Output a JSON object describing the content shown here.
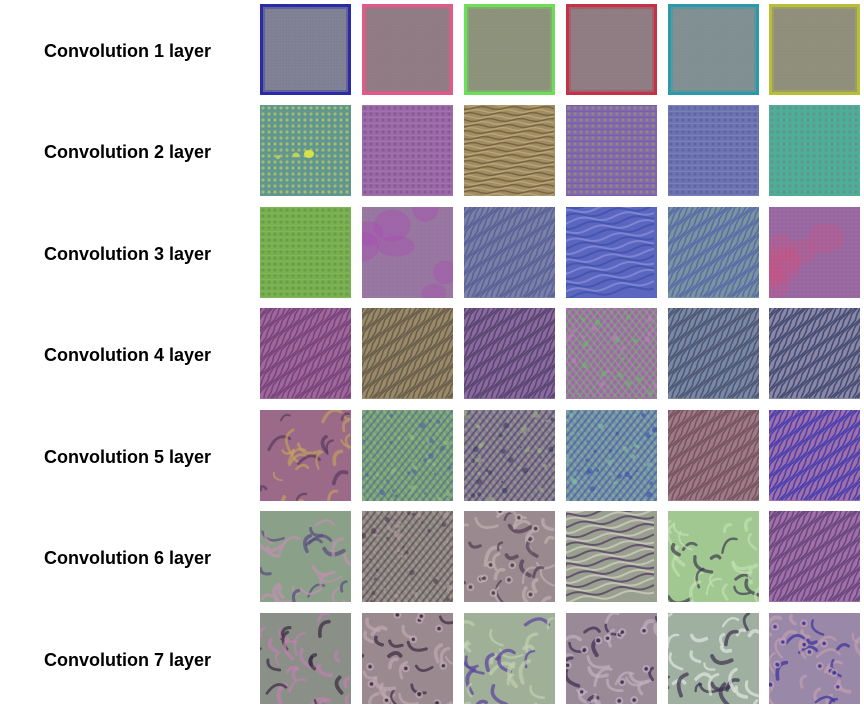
{
  "rows": [
    {
      "label": "Convolution 1 layer",
      "tiles": [
        {
          "base": "#7f7f94",
          "accent": "#2b2ba8",
          "accent2": "#9090a0",
          "pattern": "border"
        },
        {
          "base": "#8f7b84",
          "accent": "#e05a8a",
          "accent2": "#9a8088",
          "pattern": "border"
        },
        {
          "base": "#8c927a",
          "accent": "#6ede58",
          "accent2": "#959a86",
          "pattern": "border"
        },
        {
          "base": "#8e7c82",
          "accent": "#c43248",
          "accent2": "#9a8389",
          "pattern": "border"
        },
        {
          "base": "#7f8f92",
          "accent": "#2b9aa8",
          "accent2": "#8a989a",
          "pattern": "border"
        },
        {
          "base": "#8e8e7a",
          "accent": "#b8be3a",
          "accent2": "#989882",
          "pattern": "border"
        }
      ]
    },
    {
      "label": "Convolution 2 layer",
      "tiles": [
        {
          "base": "#5f9490",
          "accent": "#d8e04a",
          "accent2": "#6aa09c",
          "pattern": "dots"
        },
        {
          "base": "#9a6aa6",
          "accent": "#7a4a8c",
          "accent2": "#b480b8",
          "pattern": "grid"
        },
        {
          "base": "#a08c62",
          "accent": "#6a5a3a",
          "accent2": "#c0aa7a",
          "pattern": "hstripe"
        },
        {
          "base": "#8268b0",
          "accent": "#a0a050",
          "accent2": "#6a50a0",
          "pattern": "grid"
        },
        {
          "base": "#6e74b0",
          "accent": "#5058a0",
          "accent2": "#8a90c0",
          "pattern": "grid"
        },
        {
          "base": "#4ab098",
          "accent": "#7a7a8a",
          "accent2": "#62a090",
          "pattern": "grid"
        }
      ]
    },
    {
      "label": "Convolution 3 layer",
      "tiles": [
        {
          "base": "#78b050",
          "accent": "#5a9040",
          "accent2": "#8ac060",
          "pattern": "grid"
        },
        {
          "base": "#9a74a2",
          "accent": "#b040b8",
          "accent2": "#8a8a90",
          "pattern": "blob"
        },
        {
          "base": "#7a80a8",
          "accent": "#505890",
          "accent2": "#9a90a0",
          "pattern": "diag"
        },
        {
          "base": "#5a66c0",
          "accent": "#8a90d8",
          "accent2": "#4050a8",
          "pattern": "wave"
        },
        {
          "base": "#7a94a0",
          "accent": "#5060a8",
          "accent2": "#90a8a0",
          "pattern": "diag"
        },
        {
          "base": "#9c6aa0",
          "accent": "#d05080",
          "accent2": "#7a60a8",
          "pattern": "blob"
        }
      ]
    },
    {
      "label": "Convolution 4 layer",
      "tiles": [
        {
          "base": "#a0689a",
          "accent": "#6a3a70",
          "accent2": "#c088b8",
          "pattern": "diag"
        },
        {
          "base": "#9a8a6a",
          "accent": "#5a5040",
          "accent2": "#b8a880",
          "pattern": "diag"
        },
        {
          "base": "#8a6aa0",
          "accent": "#4a3a60",
          "accent2": "#b090b8",
          "pattern": "diag"
        },
        {
          "base": "#9a6aa0",
          "accent": "#60c060",
          "accent2": "#c080c0",
          "pattern": "cross"
        },
        {
          "base": "#7a88a8",
          "accent": "#404860",
          "accent2": "#a0a8b8",
          "pattern": "diag"
        },
        {
          "base": "#8a88a8",
          "accent": "#303860",
          "accent2": "#b8b0c0",
          "pattern": "diag"
        }
      ]
    },
    {
      "label": "Convolution 5 layer",
      "tiles": [
        {
          "base": "#9a6a88",
          "accent": "#5a3a60",
          "accent2": "#c0a060",
          "pattern": "swirl"
        },
        {
          "base": "#7aa070",
          "accent": "#4a60a8",
          "accent2": "#98c080",
          "pattern": "cross"
        },
        {
          "base": "#8a7a98",
          "accent": "#3a3a60",
          "accent2": "#a0b080",
          "pattern": "cross"
        },
        {
          "base": "#7a90a0",
          "accent": "#3a50b0",
          "accent2": "#80c0a0",
          "pattern": "cross"
        },
        {
          "base": "#a07a88",
          "accent": "#6a4a50",
          "accent2": "#c0a090",
          "pattern": "diag"
        },
        {
          "base": "#a070a8",
          "accent": "#3030b0",
          "accent2": "#c090c0",
          "pattern": "diag"
        }
      ]
    },
    {
      "label": "Convolution 6 layer",
      "tiles": [
        {
          "base": "#8aa088",
          "accent": "#5a4a80",
          "accent2": "#c090b0",
          "pattern": "swirl"
        },
        {
          "base": "#8a8a80",
          "accent": "#503a50",
          "accent2": "#b8a0a0",
          "pattern": "cross"
        },
        {
          "base": "#9a8a90",
          "accent": "#503a50",
          "accent2": "#c0b0b0",
          "pattern": "eyes"
        },
        {
          "base": "#9aa090",
          "accent": "#503a60",
          "accent2": "#d0d0c0",
          "pattern": "wave"
        },
        {
          "base": "#a0c890",
          "accent": "#403a50",
          "accent2": "#c0e0b0",
          "pattern": "swirl"
        },
        {
          "base": "#a070a8",
          "accent": "#5a3a70",
          "accent2": "#c090c0",
          "pattern": "diag"
        }
      ]
    },
    {
      "label": "Convolution 7 layer",
      "tiles": [
        {
          "base": "#8a9088",
          "accent": "#3a2a40",
          "accent2": "#c080b0",
          "pattern": "swirl"
        },
        {
          "base": "#9a8a90",
          "accent": "#3a2a40",
          "accent2": "#c0a8b0",
          "pattern": "eyes"
        },
        {
          "base": "#a0b098",
          "accent": "#5a40a0",
          "accent2": "#c0d0b0",
          "pattern": "swirl"
        },
        {
          "base": "#9a8a98",
          "accent": "#3a2a50",
          "accent2": "#c0b0c0",
          "pattern": "eyes"
        },
        {
          "base": "#a0b0a0",
          "accent": "#3a3050",
          "accent2": "#e0e8e0",
          "pattern": "swirl"
        },
        {
          "base": "#9a88a8",
          "accent": "#3a30a0",
          "accent2": "#c0a0b0",
          "pattern": "eyes"
        }
      ]
    }
  ]
}
